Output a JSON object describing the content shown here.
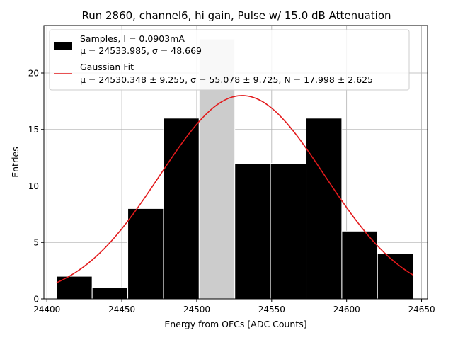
{
  "chart_data": {
    "type": "bar",
    "title": "Run 2860, channel6, hi gain, Pulse w/ 15.0 dB Attenuation",
    "xlabel": "Energy from OFCs [ADC Counts]",
    "ylabel": "Entries",
    "xlim": [
      24398,
      24654
    ],
    "ylim": [
      0,
      24.2
    ],
    "xticks": [
      24400,
      24450,
      24500,
      24550,
      24600,
      24650
    ],
    "yticks": [
      0,
      5,
      10,
      15,
      20
    ],
    "grid": true,
    "legend_position": "top-left",
    "bins": [
      {
        "x0": 24406.5,
        "x1": 24430.2,
        "count": 2
      },
      {
        "x0": 24430.2,
        "x1": 24454.0,
        "count": 1
      },
      {
        "x0": 24454.0,
        "x1": 24477.8,
        "count": 8
      },
      {
        "x0": 24477.8,
        "x1": 24501.6,
        "count": 16
      },
      {
        "x0": 24501.6,
        "x1": 24525.4,
        "count": 23
      },
      {
        "x0": 24525.4,
        "x1": 24549.2,
        "count": 12
      },
      {
        "x0": 24549.2,
        "x1": 24573.0,
        "count": 12
      },
      {
        "x0": 24573.0,
        "x1": 24596.8,
        "count": 16
      },
      {
        "x0": 24596.8,
        "x1": 24620.6,
        "count": 6
      },
      {
        "x0": 24620.6,
        "x1": 24644.4,
        "count": 4
      }
    ],
    "highlight_bin": 4,
    "series": [
      {
        "name": "Samples, I = 0.0903mA",
        "name_line2": "μ = 24533.985, σ = 48.669",
        "kind": "histogram",
        "color": "#000000",
        "highlight_color": "#cccccc"
      },
      {
        "name": "Gaussian Fit",
        "name_line2": "μ = 24530.348 ± 9.255, σ = 55.078 ± 9.725, N = 17.998 ± 2.625",
        "kind": "line",
        "color": "#e31a1c",
        "mu": 24530.348,
        "sigma": 55.078,
        "N": 17.998,
        "x_range": [
          24406.5,
          24644.4
        ]
      }
    ]
  }
}
